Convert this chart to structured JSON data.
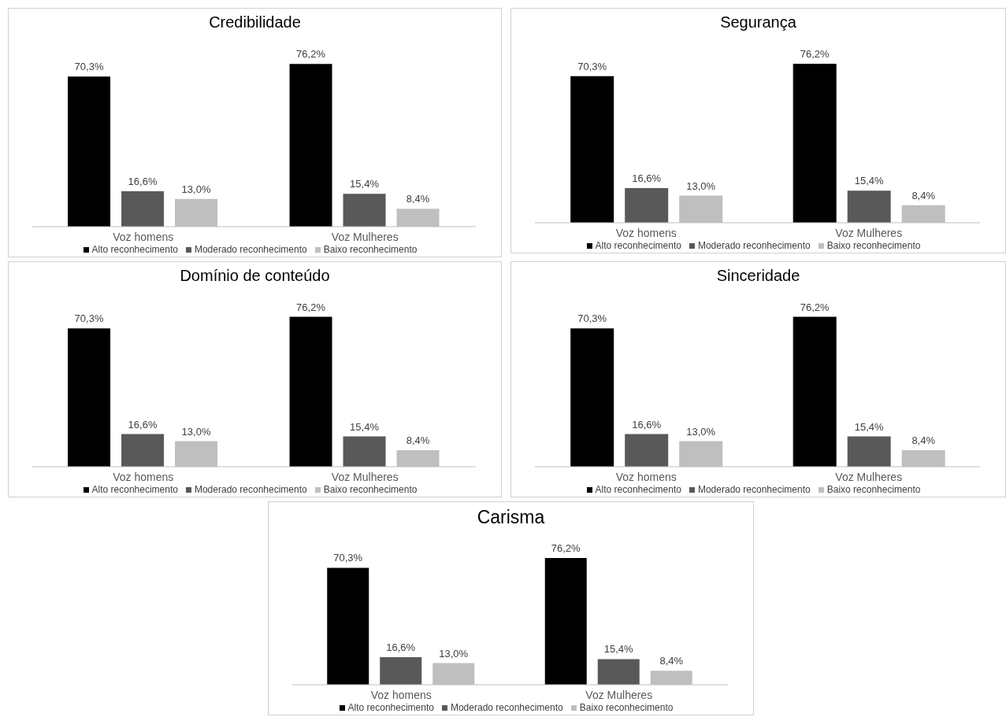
{
  "chart_data": [
    {
      "type": "bar",
      "title": "Credibilidade",
      "categories": [
        "Voz homens",
        "Voz Mulheres"
      ],
      "legend": "bottom",
      "grid": false,
      "series": [
        {
          "name": "Alto reconhecimento",
          "color": "#000000",
          "values": [
            70.3,
            76.2
          ],
          "value_labels": [
            "70,3%",
            "76,2%"
          ]
        },
        {
          "name": "Moderado reconhecimento",
          "color": "#595959",
          "values": [
            16.6,
            15.4
          ],
          "value_labels": [
            "16,6%",
            "15,4%"
          ]
        },
        {
          "name": "Baixo reconhecimento",
          "color": "#bfbfbf",
          "values": [
            13.0,
            8.4
          ],
          "value_labels": [
            "13,0%",
            "8,4%"
          ]
        }
      ]
    },
    {
      "type": "bar",
      "title": "Segurança",
      "categories": [
        "Voz homens",
        "Voz Mulheres"
      ],
      "legend": "bottom",
      "grid": false,
      "series": [
        {
          "name": "Alto reconhecimento",
          "color": "#000000",
          "values": [
            70.3,
            76.2
          ],
          "value_labels": [
            "70,3%",
            "76,2%"
          ]
        },
        {
          "name": "Moderado reconhecimento",
          "color": "#595959",
          "values": [
            16.6,
            15.4
          ],
          "value_labels": [
            "16,6%",
            "15,4%"
          ]
        },
        {
          "name": "Baixo reconhecimento",
          "color": "#bfbfbf",
          "values": [
            13.0,
            8.4
          ],
          "value_labels": [
            "13,0%",
            "8,4%"
          ]
        }
      ]
    },
    {
      "type": "bar",
      "title": "Domínio de conteúdo",
      "categories": [
        "Voz homens",
        "Voz Mulheres"
      ],
      "legend": "bottom",
      "grid": false,
      "series": [
        {
          "name": "Alto reconhecimento",
          "color": "#000000",
          "values": [
            70.3,
            76.2
          ],
          "value_labels": [
            "70,3%",
            "76,2%"
          ]
        },
        {
          "name": "Moderado reconhecimento",
          "color": "#595959",
          "values": [
            16.6,
            15.4
          ],
          "value_labels": [
            "16,6%",
            "15,4%"
          ]
        },
        {
          "name": "Baixo reconhecimento",
          "color": "#bfbfbf",
          "values": [
            13.0,
            8.4
          ],
          "value_labels": [
            "13,0%",
            "8,4%"
          ]
        }
      ]
    },
    {
      "type": "bar",
      "title": "Sinceridade",
      "categories": [
        "Voz homens",
        "Voz Mulheres"
      ],
      "legend": "bottom",
      "grid": false,
      "series": [
        {
          "name": "Alto reconhecimento",
          "color": "#000000",
          "values": [
            70.3,
            76.2
          ],
          "value_labels": [
            "70,3%",
            "76,2%"
          ]
        },
        {
          "name": "Moderado reconhecimento",
          "color": "#595959",
          "values": [
            16.6,
            15.4
          ],
          "value_labels": [
            "16,6%",
            "15,4%"
          ]
        },
        {
          "name": "Baixo reconhecimento",
          "color": "#bfbfbf",
          "values": [
            13.0,
            8.4
          ],
          "value_labels": [
            "13,0%",
            "8,4%"
          ]
        }
      ]
    },
    {
      "type": "bar",
      "title": "Carisma",
      "categories": [
        "Voz homens",
        "Voz Mulheres"
      ],
      "legend": "bottom",
      "grid": false,
      "series": [
        {
          "name": "Alto reconhecimento",
          "color": "#000000",
          "values": [
            70.3,
            76.2
          ],
          "value_labels": [
            "70,3%",
            "76,2%"
          ]
        },
        {
          "name": "Moderado reconhecimento",
          "color": "#595959",
          "values": [
            16.6,
            15.4
          ],
          "value_labels": [
            "16,6%",
            "15,4%"
          ]
        },
        {
          "name": "Baixo reconhecimento",
          "color": "#bfbfbf",
          "values": [
            13.0,
            8.4
          ],
          "value_labels": [
            "13,0%",
            "8,4%"
          ]
        }
      ]
    }
  ]
}
